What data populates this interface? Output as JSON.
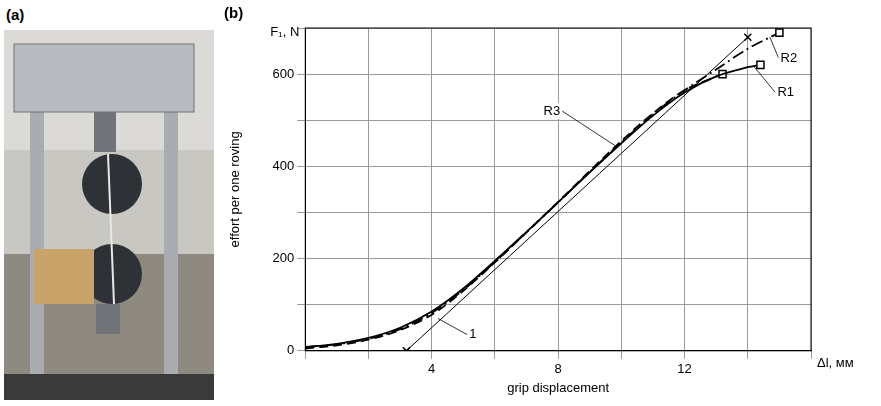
{
  "photo": {
    "label": "(a)"
  },
  "chart_data": {
    "type": "line",
    "title": "(b)",
    "x_label": "grip displacement",
    "x_unit_label": "Δl, мм",
    "y_label": "effort per one roving",
    "y_unit_label": "F₁, N",
    "xlim": [
      0,
      16
    ],
    "xticks": [
      4,
      8,
      12
    ],
    "ylim": [
      0,
      700
    ],
    "yticks": [
      0,
      200,
      400,
      600
    ],
    "grid": true,
    "legend": "none",
    "series": [
      {
        "name": "R1",
        "color": "#000000",
        "line_style": "solid",
        "marker": "square",
        "x": [
          0,
          1,
          2,
          3,
          4,
          5,
          6,
          7,
          8,
          9,
          10,
          11,
          12,
          13,
          14,
          14.4
        ],
        "values": [
          8,
          15,
          28,
          50,
          85,
          135,
          195,
          258,
          322,
          387,
          450,
          510,
          560,
          595,
          615,
          620
        ],
        "label_at": [
          15.2,
          560
        ],
        "points_to": [
          14.2,
          616
        ]
      },
      {
        "name": "R2",
        "color": "#000000",
        "line_style": "dashdot",
        "marker": "square",
        "x": [
          0,
          1,
          2,
          3,
          4,
          5,
          6,
          7,
          8,
          9,
          10,
          11,
          12,
          13,
          14,
          15
        ],
        "values": [
          8,
          14,
          26,
          47,
          82,
          132,
          193,
          257,
          322,
          388,
          452,
          513,
          565,
          610,
          655,
          690
        ],
        "label_at": [
          15.3,
          635
        ],
        "points_to": [
          14.7,
          680
        ]
      },
      {
        "name": "R3",
        "color": "#000000",
        "line_style": "dashed",
        "marker": "square",
        "x": [
          0,
          1,
          2,
          3,
          4,
          5,
          6,
          7,
          8,
          9,
          10,
          11,
          12,
          13.2
        ],
        "values": [
          5,
          12,
          24,
          45,
          78,
          130,
          192,
          257,
          323,
          390,
          455,
          515,
          565,
          600
        ],
        "label_at": [
          7.8,
          520
        ],
        "points_to": [
          9.8,
          445
        ]
      },
      {
        "name": "1",
        "color": "#000000",
        "line_style": "thin",
        "marker": "cross",
        "x": [
          3.2,
          14
        ],
        "values": [
          0,
          680
        ],
        "label_at": [
          5.3,
          35
        ],
        "points_to": [
          4.2,
          70
        ]
      }
    ]
  }
}
